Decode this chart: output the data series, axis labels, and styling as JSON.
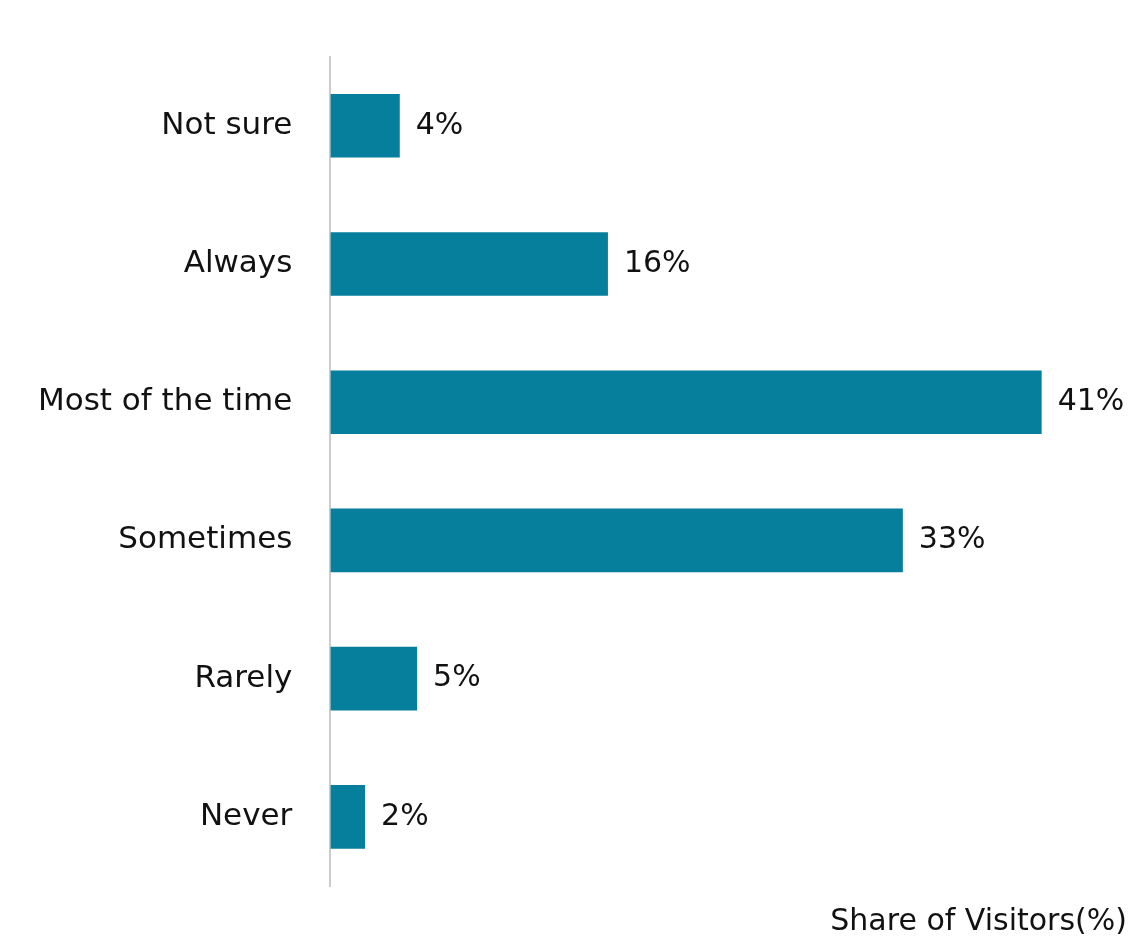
{
  "chart_data": {
    "type": "bar",
    "orientation": "horizontal",
    "xlabel": "Share of Visitors(%)",
    "categories": [
      "Not sure",
      "Always",
      "Most of the time",
      "Sometimes",
      "Rarely",
      "Never"
    ],
    "values": [
      4,
      16,
      41,
      33,
      5,
      2
    ],
    "value_labels": [
      "4%",
      "16%",
      "41%",
      "33%",
      "5%",
      "2%"
    ],
    "color": "#067f9c",
    "grid": false,
    "legend": false
  }
}
